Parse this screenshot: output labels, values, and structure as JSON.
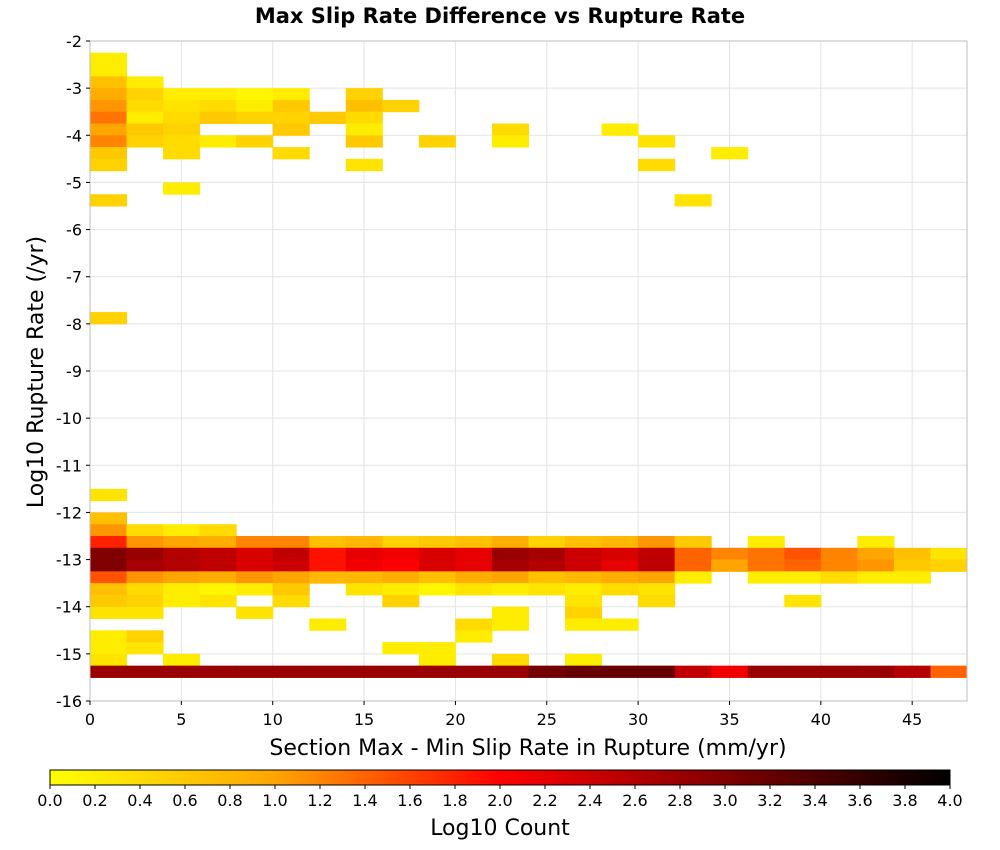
{
  "chart_data": {
    "type": "heatmap",
    "title": "Max Slip Rate Difference vs Rupture Rate",
    "xlabel": "Section Max - Min Slip Rate in Rupture (mm/yr)",
    "ylabel": "Log10 Rupture Rate (/yr)",
    "xlim": [
      0,
      48
    ],
    "ylim": [
      -16,
      -2
    ],
    "x_bin_width": 2,
    "y_bin_width": 0.25,
    "x_ticks": [
      "0",
      "5",
      "10",
      "15",
      "20",
      "25",
      "30",
      "35",
      "40",
      "45"
    ],
    "y_ticks": [
      "-2",
      "-3",
      "-4",
      "-5",
      "-6",
      "-7",
      "-8",
      "-9",
      "-10",
      "-11",
      "-12",
      "-13",
      "-14",
      "-15",
      "-16"
    ],
    "grid": true,
    "colorbar": {
      "label": "Log10 Count",
      "range": [
        0.0,
        4.0
      ],
      "ticks": [
        "0.0",
        "0.2",
        "0.4",
        "0.6",
        "0.8",
        "1.0",
        "1.2",
        "1.4",
        "1.6",
        "1.8",
        "2.0",
        "2.2",
        "2.4",
        "2.6",
        "2.8",
        "3.0",
        "3.2",
        "3.4",
        "3.6",
        "3.8",
        "4.0"
      ],
      "placement": "bottom",
      "colors": [
        "#ffff00",
        "#ffa500",
        "#ff0000",
        "#800000",
        "#000000"
      ]
    },
    "cells_note": "each cell: [x_bin_start (mm/yr), y_bin_start (log10 /yr), log10 count]",
    "cells": [
      [
        0,
        -2.75,
        0.2
      ],
      [
        0,
        -2.5,
        0.2
      ],
      [
        0,
        -3.0,
        0.7
      ],
      [
        2,
        -3.0,
        0.2
      ],
      [
        0,
        -3.25,
        0.9
      ],
      [
        2,
        -3.25,
        0.5
      ],
      [
        4,
        -3.25,
        0.2
      ],
      [
        6,
        -3.25,
        0.2
      ],
      [
        8,
        -3.25,
        0.1
      ],
      [
        10,
        -3.25,
        0.2
      ],
      [
        14,
        -3.25,
        0.5
      ],
      [
        0,
        -3.5,
        1.1
      ],
      [
        2,
        -3.5,
        0.4
      ],
      [
        4,
        -3.5,
        0.3
      ],
      [
        6,
        -3.5,
        0.4
      ],
      [
        8,
        -3.5,
        0.2
      ],
      [
        10,
        -3.5,
        0.6
      ],
      [
        14,
        -3.5,
        0.7
      ],
      [
        16,
        -3.5,
        0.5
      ],
      [
        0,
        -3.75,
        1.3
      ],
      [
        2,
        -3.75,
        0.2
      ],
      [
        4,
        -3.75,
        0.4
      ],
      [
        6,
        -3.75,
        0.6
      ],
      [
        8,
        -3.75,
        0.5
      ],
      [
        10,
        -3.75,
        0.5
      ],
      [
        12,
        -3.75,
        0.6
      ],
      [
        14,
        -3.75,
        0.4
      ],
      [
        0,
        -4.0,
        1.0
      ],
      [
        2,
        -4.0,
        0.6
      ],
      [
        4,
        -4.0,
        0.5
      ],
      [
        10,
        -4.0,
        0.6
      ],
      [
        14,
        -4.0,
        0.2
      ],
      [
        22,
        -4.0,
        0.4
      ],
      [
        28,
        -4.0,
        0.2
      ],
      [
        0,
        -4.25,
        1.2
      ],
      [
        2,
        -4.25,
        0.5
      ],
      [
        4,
        -4.25,
        0.4
      ],
      [
        6,
        -4.25,
        0.2
      ],
      [
        8,
        -4.25,
        0.5
      ],
      [
        14,
        -4.25,
        0.6
      ],
      [
        18,
        -4.25,
        0.5
      ],
      [
        22,
        -4.25,
        0.2
      ],
      [
        30,
        -4.25,
        0.3
      ],
      [
        0,
        -4.5,
        0.6
      ],
      [
        4,
        -4.5,
        0.4
      ],
      [
        10,
        -4.5,
        0.4
      ],
      [
        34,
        -4.5,
        0.2
      ],
      [
        0,
        -4.75,
        0.5
      ],
      [
        14,
        -4.75,
        0.3
      ],
      [
        30,
        -4.75,
        0.4
      ],
      [
        4,
        -5.25,
        0.2
      ],
      [
        0,
        -5.5,
        0.5
      ],
      [
        32,
        -5.5,
        0.3
      ],
      [
        0,
        -8.0,
        0.5
      ],
      [
        0,
        -11.75,
        0.3
      ],
      [
        0,
        -12.25,
        0.7
      ],
      [
        0,
        -12.5,
        1.1
      ],
      [
        2,
        -12.5,
        0.4
      ],
      [
        4,
        -12.5,
        0.2
      ],
      [
        6,
        -12.5,
        0.4
      ],
      [
        0,
        -12.75,
        1.8
      ],
      [
        2,
        -12.75,
        1.1
      ],
      [
        4,
        -12.75,
        1.0
      ],
      [
        6,
        -12.75,
        0.9
      ],
      [
        8,
        -12.75,
        1.2
      ],
      [
        10,
        -12.75,
        1.2
      ],
      [
        12,
        -12.75,
        0.7
      ],
      [
        14,
        -12.75,
        0.8
      ],
      [
        16,
        -12.75,
        0.5
      ],
      [
        18,
        -12.75,
        0.6
      ],
      [
        20,
        -12.75,
        0.7
      ],
      [
        22,
        -12.75,
        0.9
      ],
      [
        24,
        -12.75,
        0.5
      ],
      [
        26,
        -12.75,
        0.7
      ],
      [
        28,
        -12.75,
        0.8
      ],
      [
        30,
        -12.75,
        1.1
      ],
      [
        32,
        -12.75,
        0.6
      ],
      [
        36,
        -12.75,
        0.2
      ],
      [
        42,
        -12.75,
        0.2
      ],
      [
        0,
        -13.0,
        3.0
      ],
      [
        2,
        -13.0,
        2.8
      ],
      [
        4,
        -13.0,
        2.6
      ],
      [
        6,
        -13.0,
        2.5
      ],
      [
        8,
        -13.0,
        2.3
      ],
      [
        10,
        -13.0,
        2.5
      ],
      [
        12,
        -13.0,
        1.9
      ],
      [
        14,
        -13.0,
        2.2
      ],
      [
        16,
        -13.0,
        2.1
      ],
      [
        18,
        -13.0,
        2.3
      ],
      [
        20,
        -13.0,
        2.2
      ],
      [
        22,
        -13.0,
        2.8
      ],
      [
        24,
        -13.0,
        2.7
      ],
      [
        26,
        -13.0,
        2.4
      ],
      [
        28,
        -13.0,
        2.3
      ],
      [
        30,
        -13.0,
        2.5
      ],
      [
        32,
        -13.0,
        1.4
      ],
      [
        34,
        -13.0,
        1.2
      ],
      [
        36,
        -13.0,
        1.3
      ],
      [
        38,
        -13.0,
        1.5
      ],
      [
        40,
        -13.0,
        1.2
      ],
      [
        42,
        -13.0,
        1.0
      ],
      [
        44,
        -13.0,
        0.7
      ],
      [
        46,
        -13.0,
        0.3
      ],
      [
        0,
        -13.25,
        3.0
      ],
      [
        2,
        -13.25,
        2.7
      ],
      [
        4,
        -13.25,
        2.6
      ],
      [
        6,
        -13.25,
        2.5
      ],
      [
        8,
        -13.25,
        2.3
      ],
      [
        10,
        -13.25,
        2.4
      ],
      [
        12,
        -13.25,
        1.9
      ],
      [
        14,
        -13.25,
        2.1
      ],
      [
        16,
        -13.25,
        2.0
      ],
      [
        18,
        -13.25,
        2.3
      ],
      [
        20,
        -13.25,
        2.2
      ],
      [
        22,
        -13.25,
        2.7
      ],
      [
        24,
        -13.25,
        2.6
      ],
      [
        26,
        -13.25,
        2.4
      ],
      [
        28,
        -13.25,
        2.2
      ],
      [
        30,
        -13.25,
        2.5
      ],
      [
        32,
        -13.25,
        1.4
      ],
      [
        34,
        -13.25,
        1.0
      ],
      [
        36,
        -13.25,
        1.3
      ],
      [
        38,
        -13.25,
        1.4
      ],
      [
        40,
        -13.25,
        1.2
      ],
      [
        42,
        -13.25,
        1.1
      ],
      [
        44,
        -13.25,
        0.6
      ],
      [
        46,
        -13.25,
        0.5
      ],
      [
        0,
        -13.5,
        1.5
      ],
      [
        2,
        -13.5,
        1.1
      ],
      [
        4,
        -13.5,
        1.0
      ],
      [
        6,
        -13.5,
        0.9
      ],
      [
        8,
        -13.5,
        1.1
      ],
      [
        10,
        -13.5,
        1.0
      ],
      [
        12,
        -13.5,
        0.8
      ],
      [
        14,
        -13.5,
        0.8
      ],
      [
        16,
        -13.5,
        0.9
      ],
      [
        18,
        -13.5,
        0.7
      ],
      [
        20,
        -13.5,
        0.9
      ],
      [
        22,
        -13.5,
        1.0
      ],
      [
        24,
        -13.5,
        0.7
      ],
      [
        26,
        -13.5,
        0.8
      ],
      [
        28,
        -13.5,
        0.9
      ],
      [
        30,
        -13.5,
        1.0
      ],
      [
        32,
        -13.5,
        0.2
      ],
      [
        36,
        -13.5,
        0.2
      ],
      [
        38,
        -13.5,
        0.2
      ],
      [
        40,
        -13.5,
        0.4
      ],
      [
        42,
        -13.5,
        0.2
      ],
      [
        44,
        -13.5,
        0.2
      ],
      [
        0,
        -13.75,
        0.7
      ],
      [
        2,
        -13.75,
        0.4
      ],
      [
        4,
        -13.75,
        0.2
      ],
      [
        6,
        -13.75,
        0.1
      ],
      [
        8,
        -13.75,
        0.2
      ],
      [
        10,
        -13.75,
        0.6
      ],
      [
        14,
        -13.75,
        0.3
      ],
      [
        16,
        -13.75,
        0.2
      ],
      [
        18,
        -13.75,
        0.1
      ],
      [
        20,
        -13.75,
        0.3
      ],
      [
        22,
        -13.75,
        0.2
      ],
      [
        24,
        -13.75,
        0.3
      ],
      [
        26,
        -13.75,
        0.2
      ],
      [
        28,
        -13.75,
        0.4
      ],
      [
        30,
        -13.75,
        0.3
      ],
      [
        0,
        -14.0,
        0.6
      ],
      [
        2,
        -14.0,
        0.5
      ],
      [
        4,
        -14.0,
        0.2
      ],
      [
        6,
        -14.0,
        0.3
      ],
      [
        10,
        -14.0,
        0.4
      ],
      [
        16,
        -14.0,
        0.5
      ],
      [
        26,
        -14.0,
        0.3
      ],
      [
        30,
        -14.0,
        0.4
      ],
      [
        38,
        -14.0,
        0.3
      ],
      [
        0,
        -14.25,
        0.3
      ],
      [
        2,
        -14.25,
        0.3
      ],
      [
        8,
        -14.25,
        0.3
      ],
      [
        22,
        -14.25,
        0.2
      ],
      [
        26,
        -14.25,
        0.5
      ],
      [
        12,
        -14.5,
        0.2
      ],
      [
        20,
        -14.5,
        0.4
      ],
      [
        22,
        -14.5,
        0.2
      ],
      [
        26,
        -14.5,
        0.2
      ],
      [
        28,
        -14.5,
        0.2
      ],
      [
        0,
        -14.75,
        0.2
      ],
      [
        2,
        -14.75,
        0.5
      ],
      [
        20,
        -14.75,
        0.2
      ],
      [
        0,
        -15.0,
        0.2
      ],
      [
        2,
        -15.0,
        0.3
      ],
      [
        16,
        -15.0,
        0.2
      ],
      [
        18,
        -15.0,
        0.2
      ],
      [
        0,
        -15.25,
        0.3
      ],
      [
        4,
        -15.25,
        0.2
      ],
      [
        18,
        -15.25,
        0.2
      ],
      [
        22,
        -15.25,
        0.4
      ],
      [
        26,
        -15.25,
        0.2
      ],
      [
        0,
        -15.5,
        2.8
      ],
      [
        2,
        -15.5,
        2.8
      ],
      [
        4,
        -15.5,
        2.8
      ],
      [
        6,
        -15.5,
        2.8
      ],
      [
        8,
        -15.5,
        2.8
      ],
      [
        10,
        -15.5,
        2.8
      ],
      [
        12,
        -15.5,
        2.8
      ],
      [
        14,
        -15.5,
        2.8
      ],
      [
        16,
        -15.5,
        2.8
      ],
      [
        18,
        -15.5,
        2.8
      ],
      [
        20,
        -15.5,
        2.8
      ],
      [
        22,
        -15.5,
        2.8
      ],
      [
        24,
        -15.5,
        3.1
      ],
      [
        26,
        -15.5,
        3.2
      ],
      [
        28,
        -15.5,
        3.2
      ],
      [
        30,
        -15.5,
        3.2
      ],
      [
        32,
        -15.5,
        2.5
      ],
      [
        34,
        -15.5,
        2.1
      ],
      [
        36,
        -15.5,
        2.8
      ],
      [
        38,
        -15.5,
        2.8
      ],
      [
        40,
        -15.5,
        2.8
      ],
      [
        42,
        -15.5,
        2.8
      ],
      [
        44,
        -15.5,
        2.6
      ],
      [
        46,
        -15.5,
        1.4
      ]
    ]
  }
}
